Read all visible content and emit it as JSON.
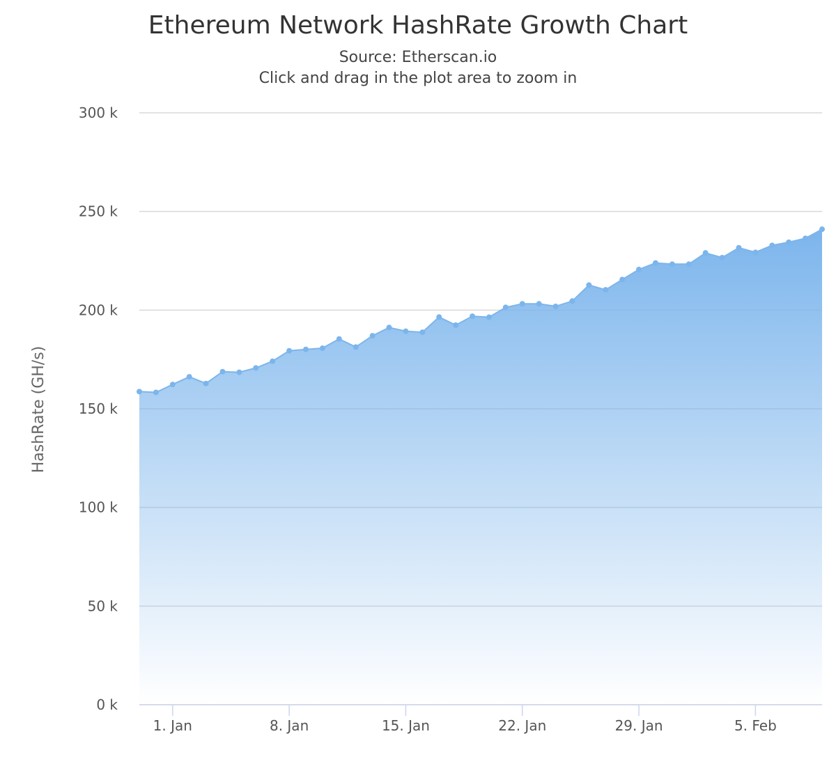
{
  "chart_data": {
    "type": "area",
    "title": "Ethereum Network HashRate Growth Chart",
    "subtitle": "Source: Etherscan.io",
    "subtitle2": "Click and drag in the plot area to zoom in",
    "xlabel": "",
    "ylabel": "HashRate (GH/s)",
    "ylim": [
      0,
      300000
    ],
    "y_ticks": [
      0,
      50000,
      100000,
      150000,
      200000,
      250000,
      300000
    ],
    "y_tick_labels": [
      "0 k",
      "50 k",
      "100 k",
      "150 k",
      "200 k",
      "250 k",
      "300 k"
    ],
    "xlim": [
      "2017-12-30",
      "2018-02-09"
    ],
    "x_ticks": [
      "2018-01-01",
      "2018-01-08",
      "2018-01-15",
      "2018-01-22",
      "2018-01-29",
      "2018-02-05"
    ],
    "x_tick_labels": [
      "1. Jan",
      "8. Jan",
      "15. Jan",
      "22. Jan",
      "29. Jan",
      "5. Feb"
    ],
    "grid": true,
    "legend": "none",
    "series": [
      {
        "color": "#7cb5ec",
        "x": [
          "2017-12-30",
          "2017-12-31",
          "2018-01-01",
          "2018-01-02",
          "2018-01-03",
          "2018-01-04",
          "2018-01-05",
          "2018-01-06",
          "2018-01-07",
          "2018-01-08",
          "2018-01-09",
          "2018-01-10",
          "2018-01-11",
          "2018-01-12",
          "2018-01-13",
          "2018-01-14",
          "2018-01-15",
          "2018-01-16",
          "2018-01-17",
          "2018-01-18",
          "2018-01-19",
          "2018-01-20",
          "2018-01-21",
          "2018-01-22",
          "2018-01-23",
          "2018-01-24",
          "2018-01-25",
          "2018-01-26",
          "2018-01-27",
          "2018-01-28",
          "2018-01-29",
          "2018-01-30",
          "2018-01-31",
          "2018-02-01",
          "2018-02-02",
          "2018-02-03",
          "2018-02-04",
          "2018-02-05",
          "2018-02-06",
          "2018-02-07",
          "2018-02-08",
          "2018-02-09"
        ],
        "values": [
          158700,
          158300,
          162300,
          166200,
          162800,
          168800,
          168500,
          170700,
          174100,
          179400,
          180100,
          180700,
          185400,
          181300,
          187000,
          191200,
          189300,
          188800,
          196500,
          192400,
          196900,
          196400,
          201400,
          203200,
          203200,
          201900,
          204600,
          212700,
          210300,
          215500,
          220600,
          223900,
          223300,
          223300,
          229000,
          226600,
          231600,
          229300,
          232800,
          234400,
          236400,
          241000
        ]
      }
    ]
  }
}
